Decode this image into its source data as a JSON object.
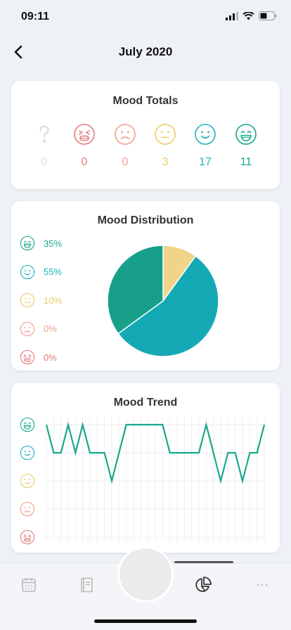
{
  "status": {
    "time": "09:11"
  },
  "header": {
    "title": "July 2020"
  },
  "totals": {
    "title": "Mood Totals",
    "moods": [
      {
        "icon": "unknown-mood-icon",
        "count": "0",
        "color": "#dcdcdc"
      },
      {
        "icon": "angry-face-icon",
        "count": "0",
        "color": "#e07b7b"
      },
      {
        "icon": "sad-face-icon",
        "count": "0",
        "color": "#ee9f8c"
      },
      {
        "icon": "neutral-face-icon",
        "count": "3",
        "color": "#ecc968"
      },
      {
        "icon": "smile-face-icon",
        "count": "17",
        "color": "#1fb2bf"
      },
      {
        "icon": "grin-face-icon",
        "count": "11",
        "color": "#18a88c"
      }
    ]
  },
  "distribution": {
    "title": "Mood Distribution",
    "legend": [
      {
        "icon": "grin-face-icon",
        "pct": "35%",
        "color": "#18a88c"
      },
      {
        "icon": "smile-face-icon",
        "pct": "55%",
        "color": "#1fb2bf"
      },
      {
        "icon": "neutral-face-icon",
        "pct": "10%",
        "color": "#ecc968"
      },
      {
        "icon": "sad-face-icon",
        "pct": "0%",
        "color": "#ee9f8c"
      },
      {
        "icon": "angry-face-icon",
        "pct": "0%",
        "color": "#e07b7b"
      }
    ]
  },
  "trend": {
    "title": "Mood Trend",
    "levels": [
      "grin",
      "smile",
      "neutral",
      "sad",
      "angry"
    ]
  },
  "chart_data": [
    {
      "type": "pie",
      "title": "Mood Distribution",
      "slices": [
        {
          "label": "neutral",
          "value": 10,
          "color": "#efd48a"
        },
        {
          "label": "smile",
          "value": 55,
          "color": "#14a9b5"
        },
        {
          "label": "grin",
          "value": 35,
          "color": "#179f8a"
        }
      ]
    },
    {
      "type": "line",
      "title": "Mood Trend",
      "ylim": [
        1,
        5
      ],
      "y_scale": "5=grin, 4=smile, 3=neutral, 2=sad, 1=angry",
      "color": "#18a88c",
      "values": [
        5,
        4,
        4,
        5,
        4,
        5,
        4,
        4,
        4,
        3,
        4,
        5,
        5,
        5,
        5,
        5,
        5,
        4,
        4,
        4,
        4,
        4,
        5,
        4,
        3,
        4,
        4,
        3,
        4,
        4,
        5
      ]
    }
  ],
  "tabs": [
    {
      "icon": "calendar-icon"
    },
    {
      "icon": "journal-icon"
    },
    {
      "icon": "pie-chart-icon"
    },
    {
      "icon": "more-icon"
    }
  ]
}
